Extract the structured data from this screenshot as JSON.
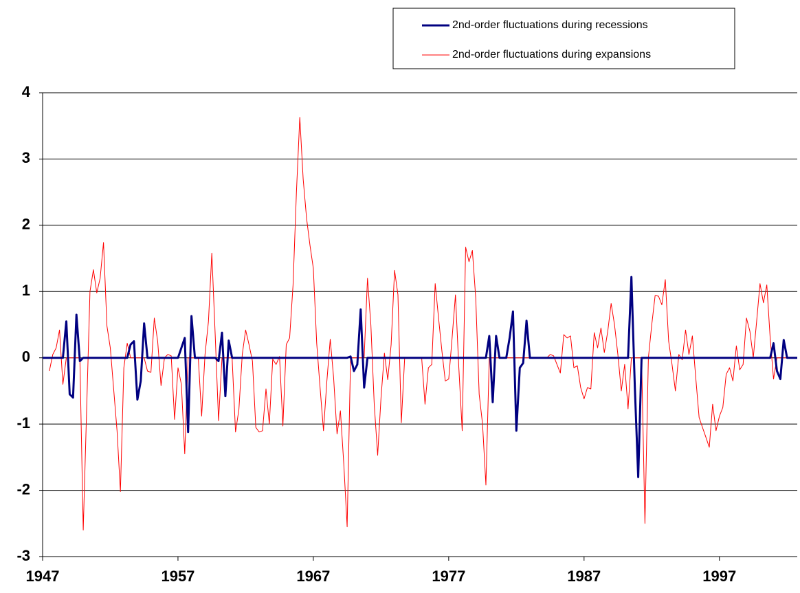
{
  "chart_data": {
    "type": "line",
    "xlim": [
      1947,
      2002.75
    ],
    "xticks": [
      1947,
      1957,
      1967,
      1977,
      1987,
      1997
    ],
    "ylim": [
      -3,
      4
    ],
    "yticks": [
      -3,
      -2,
      -1,
      0,
      1,
      2,
      3,
      4
    ],
    "grid": true,
    "legend": "top-right",
    "series": [
      {
        "name": "2nd-order fluctuations during expansions",
        "color": "#ff0000",
        "width": 1,
        "x": [
          1947.5,
          1947.75,
          1948,
          1948.25,
          1948.5,
          1948.75,
          1949.75,
          1950,
          1950.5,
          1950.75,
          1951,
          1951.25,
          1951.5,
          1951.75,
          1952,
          1952.5,
          1952.75,
          1953,
          1953.25,
          1953.5,
          1954.5,
          1954.75,
          1955,
          1955.25,
          1955.5,
          1955.75,
          1956,
          1956.25,
          1956.5,
          1956.75,
          1957,
          1957.25,
          1957.5,
          1957.75,
          1958.5,
          1958.75,
          1959,
          1959.25,
          1959.5,
          1959.75,
          1960,
          1960.25,
          1961,
          1961.25,
          1961.5,
          1961.75,
          1962,
          1962.25,
          1962.5,
          1962.75,
          1963,
          1963.25,
          1963.5,
          1963.75,
          1964,
          1964.25,
          1964.5,
          1964.75,
          1965,
          1965.25,
          1965.5,
          1965.75,
          1966,
          1966.25,
          1966.5,
          1966.75,
          1967,
          1967.25,
          1967.5,
          1967.75,
          1968,
          1968.25,
          1968.5,
          1968.75,
          1969,
          1969.25,
          1969.5,
          1969.75,
          1970.75,
          1971,
          1971.25,
          1971.5,
          1971.75,
          1972,
          1972.25,
          1972.5,
          1972.75,
          1973,
          1973.25,
          1973.5,
          1973.75,
          1975,
          1975.25,
          1975.5,
          1975.75,
          1976,
          1976.25,
          1976.5,
          1976.75,
          1977,
          1977.25,
          1977.5,
          1977.75,
          1978,
          1978.25,
          1978.5,
          1978.75,
          1979,
          1979.25,
          1979.5,
          1979.75,
          1980,
          1983,
          1984.25,
          1984.5,
          1984.75,
          1985,
          1985.25,
          1985.5,
          1985.75,
          1986,
          1986.25,
          1986.5,
          1986.75,
          1987,
          1987.25,
          1987.5,
          1987.75,
          1988,
          1988.25,
          1988.5,
          1988.75,
          1989,
          1989.25,
          1989.5,
          1989.75,
          1990,
          1990.25,
          1990.5,
          1991.25,
          1991.5,
          1991.75,
          1992,
          1992.25,
          1992.5,
          1992.75,
          1993,
          1993.25,
          1993.5,
          1993.75,
          1994,
          1994.25,
          1994.5,
          1994.75,
          1995,
          1995.25,
          1995.5,
          1995.75,
          1996,
          1996.25,
          1996.5,
          1996.75,
          1997,
          1997.25,
          1997.5,
          1997.75,
          1998,
          1998.25,
          1998.5,
          1998.75,
          1999,
          1999.25,
          1999.5,
          1999.75,
          2000,
          2000.25,
          2000.5,
          2000.75,
          2001,
          2001.25,
          2002.75
        ],
        "values": [
          -0.2,
          0.05,
          0.15,
          0.42,
          -0.4,
          0,
          0,
          -2.6,
          1.0,
          1.33,
          0.98,
          1.2,
          1.74,
          0.48,
          0.15,
          -1.1,
          -2.02,
          -0.15,
          0.22,
          0,
          0,
          -0.2,
          -0.22,
          0.6,
          0.25,
          -0.42,
          0,
          0.05,
          0.03,
          -0.93,
          -0.15,
          -0.4,
          -1.45,
          0,
          0,
          -0.88,
          0.05,
          0.55,
          1.58,
          0.35,
          -0.95,
          0,
          0,
          -1.12,
          -0.78,
          0.05,
          0.42,
          0.2,
          -0.05,
          -1.05,
          -1.12,
          -1.1,
          -0.47,
          -1.0,
          -0.02,
          -0.1,
          0.02,
          -1.03,
          0.2,
          0.3,
          1.1,
          2.5,
          3.63,
          2.7,
          2.1,
          1.7,
          1.35,
          0.22,
          -0.45,
          -1.1,
          -0.35,
          0.28,
          -0.3,
          -1.15,
          -0.8,
          -1.6,
          -2.55,
          0,
          0,
          1.2,
          0.5,
          -0.7,
          -1.47,
          -0.6,
          0.07,
          -0.33,
          0.2,
          1.32,
          0.95,
          -0.98,
          0,
          0,
          -0.7,
          -0.15,
          -0.1,
          1.12,
          0.6,
          0.1,
          -0.35,
          -0.32,
          0.3,
          0.95,
          -0.15,
          -1.1,
          1.67,
          1.45,
          1.62,
          0.9,
          -0.55,
          -1.0,
          -1.92,
          0,
          0,
          0,
          0.05,
          0.03,
          -0.1,
          -0.23,
          0.35,
          0.3,
          0.33,
          -0.15,
          -0.12,
          -0.45,
          -0.62,
          -0.45,
          -0.47,
          0.38,
          0.15,
          0.45,
          0.08,
          0.4,
          0.82,
          0.5,
          0.05,
          -0.5,
          -0.1,
          -0.77,
          0,
          0,
          -2.5,
          0,
          0.5,
          0.94,
          0.93,
          0.8,
          1.18,
          0.25,
          -0.1,
          -0.5,
          0.05,
          -0.03,
          0.42,
          0.05,
          0.33,
          -0.3,
          -0.9,
          -1.05,
          -1.2,
          -1.35,
          -0.7,
          -1.1,
          -0.88,
          -0.75,
          -0.25,
          -0.15,
          -0.35,
          0.18,
          -0.18,
          -0.1,
          0.6,
          0.4,
          0,
          0.55,
          1.12,
          0.83,
          1.1,
          0.3,
          -0.32,
          0,
          0
        ]
      },
      {
        "name": "2nd-order fluctuations during recessions",
        "color": "#000080",
        "width": 3,
        "x": [
          1947,
          1948.5,
          1948.75,
          1949,
          1949.25,
          1949.5,
          1949.75,
          1950,
          1953.25,
          1953.5,
          1953.75,
          1954,
          1954.25,
          1954.5,
          1954.75,
          1957,
          1957.25,
          1957.5,
          1957.75,
          1958,
          1958.25,
          1959.75,
          1960,
          1960.25,
          1960.5,
          1960.75,
          1961,
          1969.5,
          1969.75,
          1970,
          1970.25,
          1970.5,
          1970.75,
          1971,
          1979.75,
          1980,
          1980.25,
          1980.5,
          1980.75,
          1981.25,
          1981.5,
          1981.75,
          1982,
          1982.25,
          1982.5,
          1982.75,
          1983,
          1990.25,
          1990.5,
          1990.75,
          1991,
          1991.25,
          2000.75,
          2001,
          2001.25,
          2001.5,
          2001.75,
          2002,
          2002.75
        ],
        "values": [
          0,
          0,
          0.55,
          -0.55,
          -0.6,
          0.65,
          -0.05,
          0,
          0,
          0.2,
          0.25,
          -0.63,
          -0.35,
          0.52,
          0,
          0,
          0.15,
          0.3,
          -1.12,
          0.63,
          0,
          0,
          -0.05,
          0.38,
          -0.58,
          0.26,
          0,
          0,
          0.02,
          -0.2,
          -0.1,
          0.73,
          -0.45,
          0,
          0,
          0.33,
          -0.67,
          0.33,
          0,
          0,
          0.3,
          0.7,
          -1.1,
          -0.15,
          -0.08,
          0.56,
          0,
          0,
          1.22,
          -0.45,
          -1.8,
          0,
          0,
          0.22,
          -0.2,
          -0.32,
          0.27,
          0,
          0
        ]
      }
    ]
  }
}
